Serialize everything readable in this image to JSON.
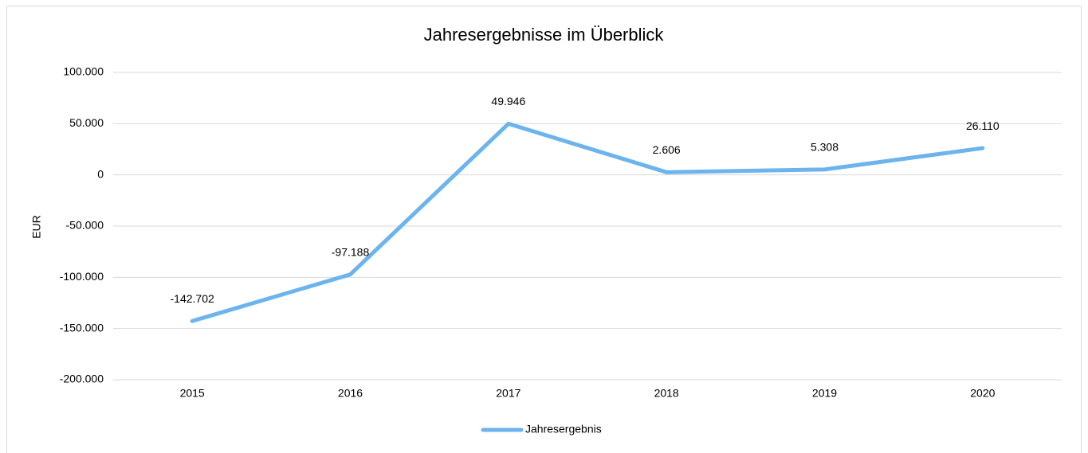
{
  "chart_data": {
    "type": "line",
    "title": "Jahresergebnisse im Überblick",
    "y_label": "EUR",
    "categories": [
      "2015",
      "2016",
      "2017",
      "2018",
      "2019",
      "2020"
    ],
    "series": [
      {
        "name": "Jahresergebnis",
        "color": "#6cb4ee",
        "values": [
          -142702,
          -97188,
          49946,
          2606,
          5308,
          26110
        ],
        "value_labels": [
          "-142.702",
          "-97.188",
          "49.946",
          "2.606",
          "5.308",
          "26.110"
        ]
      }
    ],
    "ylim": [
      -200000,
      100000
    ],
    "yticks": [
      {
        "value": -200000,
        "label": "-200.000"
      },
      {
        "value": -150000,
        "label": "-150.000"
      },
      {
        "value": -100000,
        "label": "-100.000"
      },
      {
        "value": -50000,
        "label": "-50.000"
      },
      0,
      {
        "value": 50000,
        "label": "50.000"
      },
      {
        "value": 100000,
        "label": "100.000"
      }
    ],
    "grid": true,
    "legend": "bottom"
  }
}
